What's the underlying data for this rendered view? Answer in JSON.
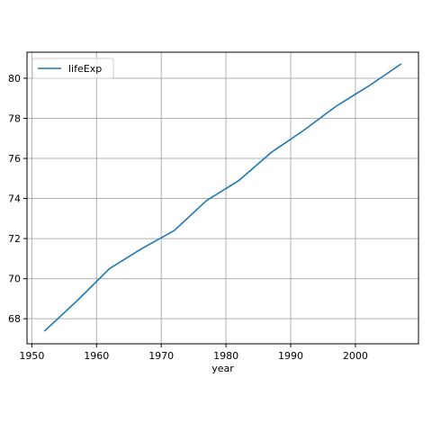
{
  "chart_data": {
    "type": "line",
    "title": "",
    "xlabel": "year",
    "ylabel": "",
    "xlim": [
      1949.25,
      2009.75
    ],
    "ylim": [
      66.75,
      81.3
    ],
    "xticks": [
      1950,
      1960,
      1970,
      1980,
      1990,
      2000
    ],
    "yticks": [
      68,
      70,
      72,
      74,
      76,
      78,
      80
    ],
    "grid": true,
    "legend_position": "upper-left",
    "series": [
      {
        "name": "lifeExp",
        "color": "#1f77b4",
        "x": [
          1952,
          1957,
          1962,
          1967,
          1972,
          1977,
          1982,
          1987,
          1992,
          1997,
          2002,
          2007
        ],
        "y": [
          67.4,
          68.9,
          70.5,
          71.5,
          72.4,
          73.9,
          74.9,
          76.3,
          77.4,
          78.6,
          79.6,
          80.7
        ]
      }
    ]
  }
}
